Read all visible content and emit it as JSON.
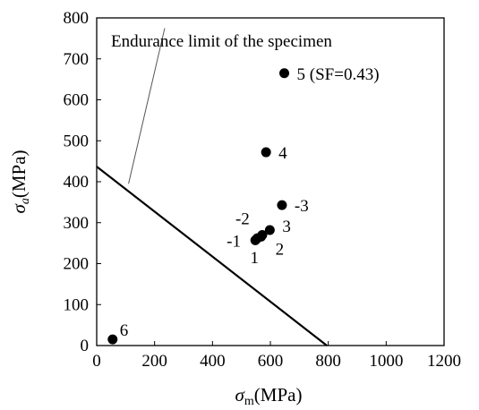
{
  "chart_data": {
    "type": "scatter",
    "xlabel": {
      "symbol": "σ",
      "subscript": "m",
      "unit": "(MPa)"
    },
    "ylabel": {
      "symbol": "σ",
      "subscript": "a",
      "unit": "(MPa)"
    },
    "xlim": [
      0,
      1200
    ],
    "ylim": [
      0,
      800
    ],
    "xticks": [
      "0",
      "200",
      "400",
      "600",
      "800",
      "1000",
      "1200"
    ],
    "yticks": [
      "0",
      "100",
      "200",
      "300",
      "400",
      "500",
      "600",
      "700",
      "800"
    ],
    "grid": false,
    "legend": "none",
    "endurance_line": {
      "x": [
        0,
        795
      ],
      "y": [
        437,
        0
      ]
    },
    "annotation": {
      "text": "Endurance limit of the specimen",
      "pointer_from": [
        235,
        775
      ],
      "pointer_to": [
        110,
        395
      ]
    },
    "points": [
      {
        "label": "1",
        "x": 555,
        "y": 262,
        "label_dx": -8,
        "label_dy": 28
      },
      {
        "label": "-1",
        "x": 548,
        "y": 257,
        "label_dx": -32,
        "label_dy": 7
      },
      {
        "label": "2",
        "x": 568,
        "y": 266,
        "label_dx": 16,
        "label_dy": 20
      },
      {
        "label": "-2",
        "x": 572,
        "y": 270,
        "label_dx": -30,
        "label_dy": -12
      },
      {
        "label": "3",
        "x": 598,
        "y": 282,
        "label_dx": 14,
        "label_dy": 2
      },
      {
        "label": "-3",
        "x": 640,
        "y": 343,
        "label_dx": 14,
        "label_dy": 7
      },
      {
        "label": "4",
        "x": 585,
        "y": 472,
        "label_dx": 14,
        "label_dy": 7
      },
      {
        "label": "5 (SF=0.43)",
        "x": 648,
        "y": 665,
        "label_dx": 14,
        "label_dy": 7
      },
      {
        "label": "6",
        "x": 55,
        "y": 15,
        "label_dx": 8,
        "label_dy": -4
      }
    ]
  }
}
